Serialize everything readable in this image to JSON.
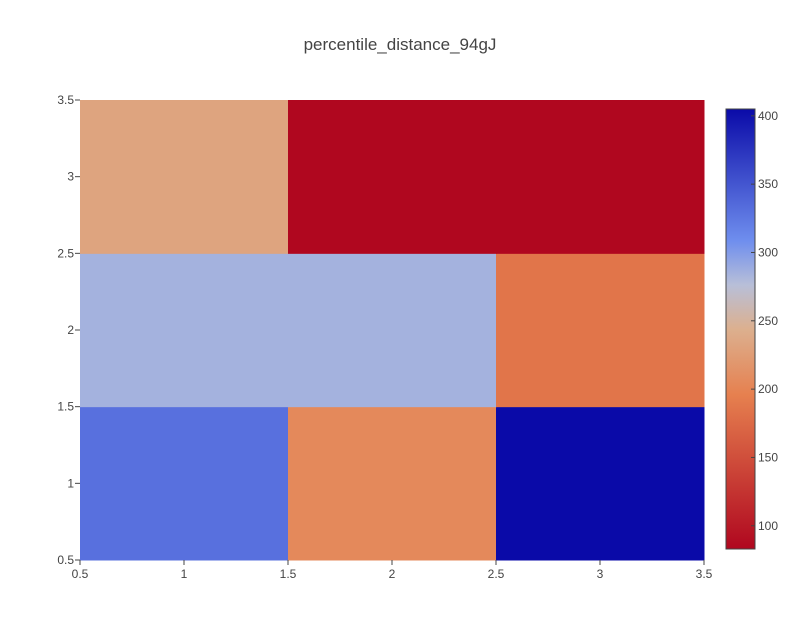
{
  "chart_data": {
    "type": "heatmap",
    "title": "percentile_distance_94gJ",
    "x": [
      1,
      2,
      3
    ],
    "y": [
      1,
      2,
      3
    ],
    "z": [
      [
        330,
        205,
        405
      ],
      [
        285,
        285,
        185
      ],
      [
        232,
        83,
        83
      ]
    ],
    "xlim": [
      0.5,
      3.5
    ],
    "ylim": [
      0.5,
      3.5
    ],
    "x_ticks": [
      "0.5",
      "1",
      "1.5",
      "2",
      "2.5",
      "3",
      "3.5"
    ],
    "y_ticks": [
      "0.5",
      "1",
      "1.5",
      "2",
      "2.5",
      "3",
      "3.5"
    ],
    "colorbar": {
      "range": [
        83,
        405
      ],
      "ticks": [
        "100",
        "150",
        "200",
        "250",
        "300",
        "350",
        "400"
      ]
    },
    "colorscale": [
      [
        0.0,
        "#b0071f"
      ],
      [
        0.35,
        "#e6804f"
      ],
      [
        0.5,
        "#dcb08f"
      ],
      [
        0.6,
        "#b8bfd8"
      ],
      [
        0.7,
        "#6f8eee"
      ],
      [
        1.0,
        "#0a0aa8"
      ]
    ],
    "grid": false
  }
}
